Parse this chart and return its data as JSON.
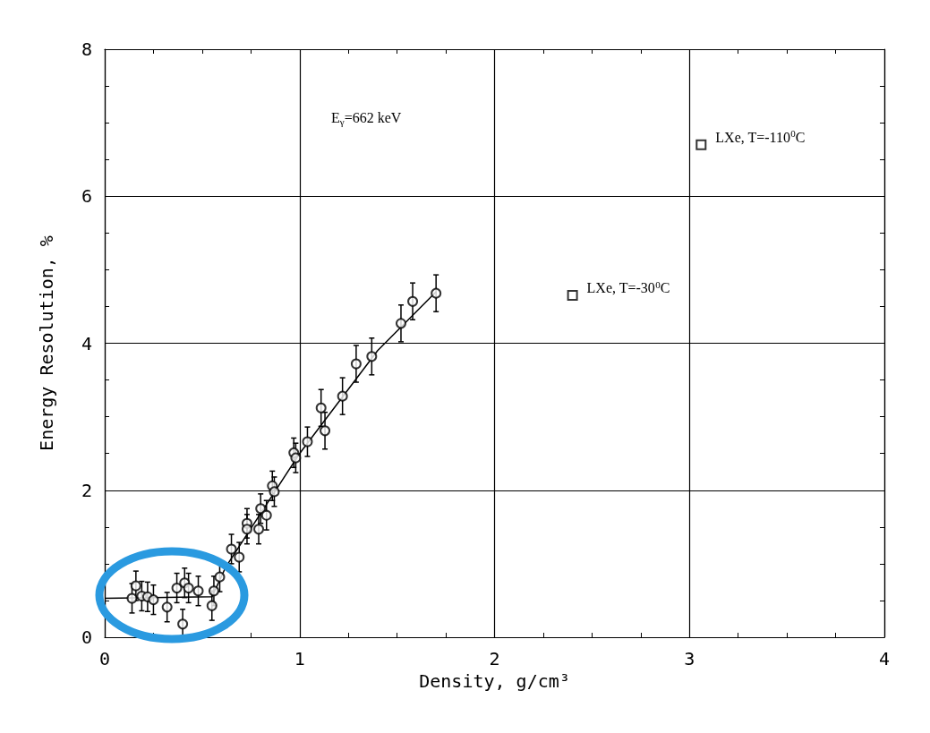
{
  "chart_data": {
    "type": "scatter",
    "xlabel": "Density, g/cm³",
    "ylabel": "Energy Resolution, %",
    "xlim": [
      0,
      4
    ],
    "xticks": [
      0,
      1,
      2,
      3,
      4
    ],
    "ylim": [
      0,
      8
    ],
    "yticks": [
      0,
      2,
      4,
      6,
      8
    ],
    "grid": true,
    "series": [
      {
        "type": "scatter",
        "marker": "circle",
        "color": "#000000",
        "x": [
          0.14,
          0.16,
          0.19,
          0.22,
          0.25,
          0.32,
          0.37,
          0.4,
          0.41,
          0.43,
          0.48,
          0.55,
          0.56,
          0.59,
          0.65,
          0.69,
          0.73,
          0.73,
          0.79,
          0.8,
          0.83,
          0.86,
          0.87,
          0.97,
          0.98,
          1.04,
          1.11,
          1.13,
          1.22,
          1.29,
          1.37,
          1.52,
          1.58,
          1.7
        ],
        "values": [
          0.53,
          0.7,
          0.56,
          0.55,
          0.51,
          0.41,
          0.67,
          0.18,
          0.74,
          0.67,
          0.63,
          0.43,
          0.63,
          0.82,
          1.2,
          1.09,
          1.55,
          1.47,
          1.47,
          1.75,
          1.66,
          2.06,
          1.98,
          2.51,
          2.44,
          2.66,
          3.12,
          2.81,
          3.28,
          3.72,
          3.82,
          4.27,
          4.57,
          4.68
        ],
        "errors": [
          0.2,
          0.2,
          0.2,
          0.2,
          0.2,
          0.2,
          0.2,
          0.2,
          0.2,
          0.2,
          0.2,
          0.2,
          0.2,
          0.2,
          0.2,
          0.2,
          0.2,
          0.2,
          0.2,
          0.2,
          0.2,
          0.2,
          0.2,
          0.2,
          0.2,
          0.2,
          0.25,
          0.25,
          0.25,
          0.25,
          0.25,
          0.25,
          0.25,
          0.25
        ]
      },
      {
        "type": "line",
        "marker": "none",
        "line_style": "solid",
        "color": "#000000",
        "x": [
          0,
          0.55,
          0.62,
          1.0,
          1.4,
          1.7
        ],
        "values": [
          0.53,
          0.55,
          0.95,
          2.5,
          3.9,
          4.7
        ]
      },
      {
        "type": "scatter",
        "marker": "square",
        "color": "#000000",
        "x": [
          2.4,
          3.06
        ],
        "values": [
          4.65,
          6.7
        ]
      }
    ],
    "annotations": [
      "E$_{γ}$=662 keV",
      {
        "text": "LXe, T=-30$^{0}$C",
        "x": 2.4,
        "y": 4.65
      },
      {
        "text": "LXe, T=-110$^{0}$C",
        "x": 3.06,
        "y": 6.7
      }
    ]
  }
}
